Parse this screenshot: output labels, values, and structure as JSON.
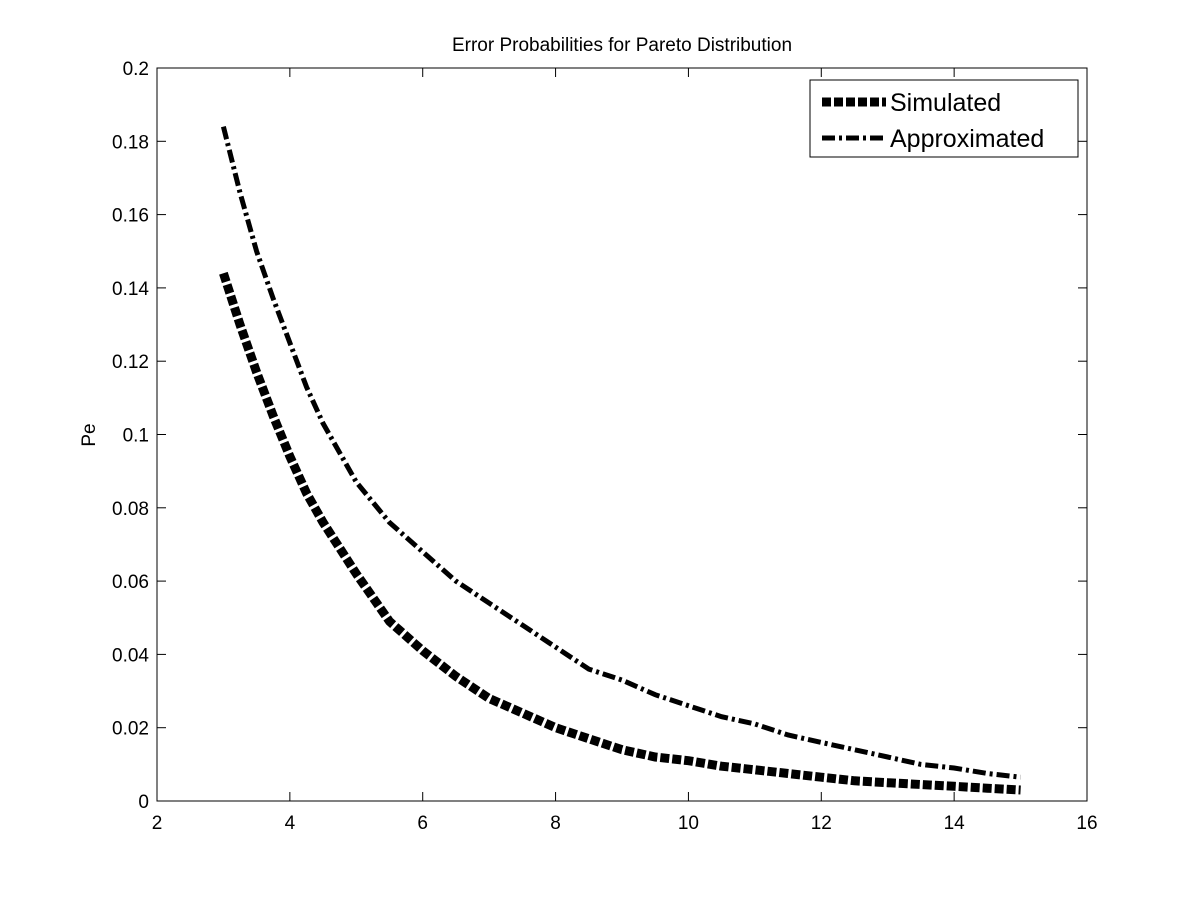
{
  "chart_data": {
    "type": "line",
    "title": "Error Probabilities for Pareto Distribution",
    "xlabel": "",
    "ylabel": "Pe",
    "xlim": [
      2,
      16
    ],
    "ylim": [
      0,
      0.2
    ],
    "xticks": [
      2,
      4,
      6,
      8,
      10,
      12,
      14,
      16
    ],
    "yticks": [
      0,
      0.02,
      0.04,
      0.06,
      0.08,
      0.1,
      0.12,
      0.14,
      0.16,
      0.18,
      0.2
    ],
    "xtick_labels": [
      "2",
      "4",
      "6",
      "8",
      "10",
      "12",
      "14",
      "16"
    ],
    "ytick_labels": [
      "0",
      "0.02",
      "0.04",
      "0.06",
      "0.08",
      "0.1",
      "0.12",
      "0.14",
      "0.16",
      "0.18",
      "0.2"
    ],
    "grid": false,
    "legend_position": "top-right",
    "series": [
      {
        "name": "Simulated",
        "style": "dashed-thick",
        "color": "#000000",
        "x": [
          3,
          3.25,
          3.5,
          3.75,
          4,
          4.25,
          4.5,
          4.75,
          5,
          5.5,
          6,
          6.5,
          7,
          7.5,
          8,
          8.5,
          9,
          9.5,
          10,
          10.5,
          11,
          11.5,
          12,
          12.5,
          13,
          13.5,
          14,
          14.5,
          15
        ],
        "y": [
          0.144,
          0.13,
          0.117,
          0.105,
          0.094,
          0.084,
          0.076,
          0.069,
          0.062,
          0.049,
          0.041,
          0.034,
          0.028,
          0.024,
          0.02,
          0.017,
          0.014,
          0.012,
          0.011,
          0.0095,
          0.0085,
          0.0075,
          0.0065,
          0.0055,
          0.005,
          0.0045,
          0.004,
          0.0035,
          0.003
        ]
      },
      {
        "name": "Approximated",
        "style": "dash-dot",
        "color": "#000000",
        "x": [
          3,
          3.25,
          3.5,
          3.75,
          4,
          4.25,
          4.5,
          4.75,
          5,
          5.5,
          6,
          6.5,
          7,
          7.5,
          8,
          8.5,
          9,
          9.5,
          10,
          10.5,
          11,
          11.5,
          12,
          12.5,
          13,
          13.5,
          14,
          14.5,
          15
        ],
        "y": [
          0.184,
          0.166,
          0.15,
          0.137,
          0.125,
          0.113,
          0.103,
          0.095,
          0.087,
          0.076,
          0.068,
          0.06,
          0.054,
          0.048,
          0.042,
          0.036,
          0.033,
          0.029,
          0.026,
          0.023,
          0.021,
          0.018,
          0.016,
          0.014,
          0.012,
          0.01,
          0.009,
          0.0075,
          0.0065
        ]
      }
    ]
  }
}
